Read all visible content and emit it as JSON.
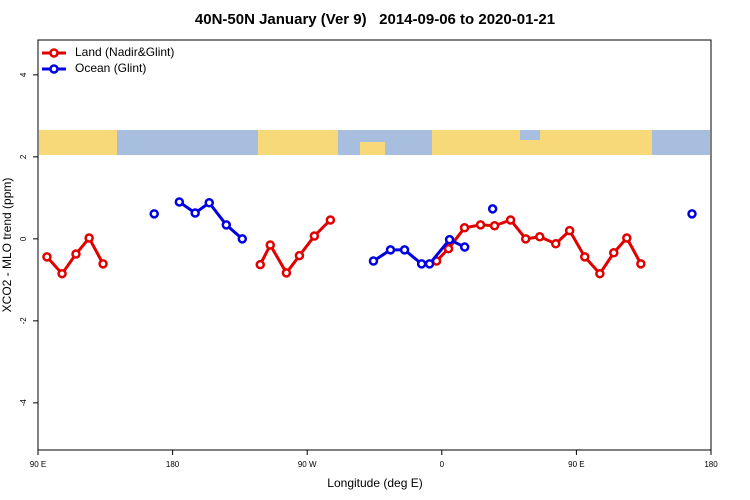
{
  "chart_data": {
    "type": "line",
    "title": "40N-50N January (Ver 9)   2014-09-06 to 2020-01-21",
    "x_label": "Longitude (deg E)",
    "y_label": "XCO2 - MLO trend (ppm)",
    "xlim": [
      90,
      540
    ],
    "ylim": [
      -5.15,
      4.85
    ],
    "xticks": [
      {
        "value": 90,
        "label": "90 E"
      },
      {
        "value": 180,
        "label": "180"
      },
      {
        "value": 270,
        "label": "90 W"
      },
      {
        "value": 360,
        "label": "0"
      },
      {
        "value": 450,
        "label": "90 E"
      },
      {
        "value": 540,
        "label": "180"
      }
    ],
    "yticks": [
      -4,
      -2,
      0,
      2,
      4
    ],
    "legend": "top-left",
    "series": [
      {
        "name": "Land (Nadir&Glint)",
        "color": "#e00000",
        "x": [
          96.0,
          106.1,
          115.4,
          124.2,
          133.5,
          null,
          238.6,
          245.3,
          256.1,
          264.8,
          274.8,
          285.5,
          null,
          356.5,
          364.5,
          375.2,
          385.9,
          395.3,
          406.0,
          416.1,
          425.5,
          436.2,
          445.5,
          455.6,
          465.7,
          475.0,
          483.7,
          493.1
        ],
        "values": [
          -0.44,
          -0.85,
          -0.37,
          0.02,
          -0.61,
          null,
          -0.63,
          -0.15,
          -0.83,
          -0.41,
          0.07,
          0.46,
          null,
          -0.54,
          -0.24,
          0.27,
          0.34,
          0.32,
          0.46,
          0.0,
          0.05,
          -0.12,
          0.2,
          -0.44,
          -0.85,
          -0.34,
          0.02,
          -0.61
        ]
      },
      {
        "name": "Ocean (Glint)",
        "color": "#0000e0",
        "x": [
          167.7,
          null,
          184.5,
          195.1,
          204.5,
          215.9,
          226.6,
          null,
          314.3,
          325.7,
          335.1,
          346.5,
          351.8,
          365.2,
          375.3,
          null,
          394.0,
          null,
          527.3
        ],
        "values": [
          0.61,
          null,
          0.9,
          0.63,
          0.88,
          0.34,
          0.0,
          null,
          -0.54,
          -0.27,
          -0.27,
          -0.61,
          -0.61,
          -0.02,
          -0.2,
          null,
          0.73,
          null,
          0.61
        ]
      }
    ]
  }
}
